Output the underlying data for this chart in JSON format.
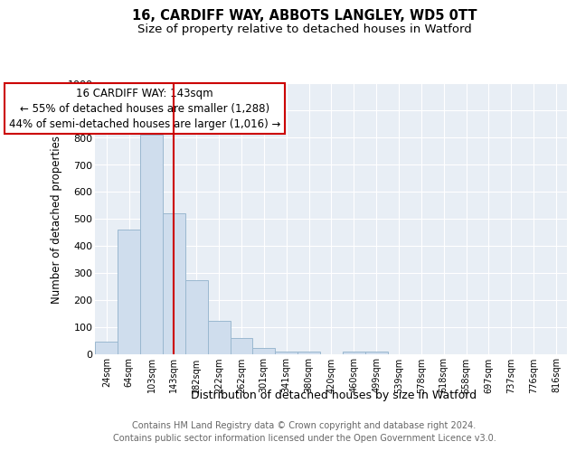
{
  "title": "16, CARDIFF WAY, ABBOTS LANGLEY, WD5 0TT",
  "subtitle": "Size of property relative to detached houses in Watford",
  "xlabel": "Distribution of detached houses by size in Watford",
  "ylabel": "Number of detached properties",
  "categories": [
    "24sqm",
    "64sqm",
    "103sqm",
    "143sqm",
    "182sqm",
    "222sqm",
    "262sqm",
    "301sqm",
    "341sqm",
    "380sqm",
    "420sqm",
    "460sqm",
    "499sqm",
    "539sqm",
    "578sqm",
    "618sqm",
    "658sqm",
    "697sqm",
    "737sqm",
    "776sqm",
    "816sqm"
  ],
  "values": [
    47,
    460,
    810,
    520,
    275,
    125,
    60,
    25,
    10,
    10,
    0,
    10,
    10,
    0,
    0,
    0,
    0,
    0,
    0,
    0,
    0
  ],
  "bar_color": "#cfdded",
  "bar_edge_color": "#9ab8d0",
  "vline_x": 3,
  "vline_color": "#cc0000",
  "annotation_line1": "16 CARDIFF WAY: 143sqm",
  "annotation_line2": "← 55% of detached houses are smaller (1,288)",
  "annotation_line3": "44% of semi-detached houses are larger (1,016) →",
  "annotation_box_color": "#ffffff",
  "annotation_box_edge": "#cc0000",
  "ylim": [
    0,
    1000
  ],
  "yticks": [
    0,
    100,
    200,
    300,
    400,
    500,
    600,
    700,
    800,
    900,
    1000
  ],
  "background_color": "#e8eef5",
  "grid_color": "#ffffff",
  "fig_color": "#ffffff",
  "footer_text": "Contains HM Land Registry data © Crown copyright and database right 2024.\nContains public sector information licensed under the Open Government Licence v3.0.",
  "title_fontsize": 10.5,
  "subtitle_fontsize": 9.5,
  "xlabel_fontsize": 9,
  "ylabel_fontsize": 8.5,
  "annotation_fontsize": 8.5,
  "footer_fontsize": 7
}
